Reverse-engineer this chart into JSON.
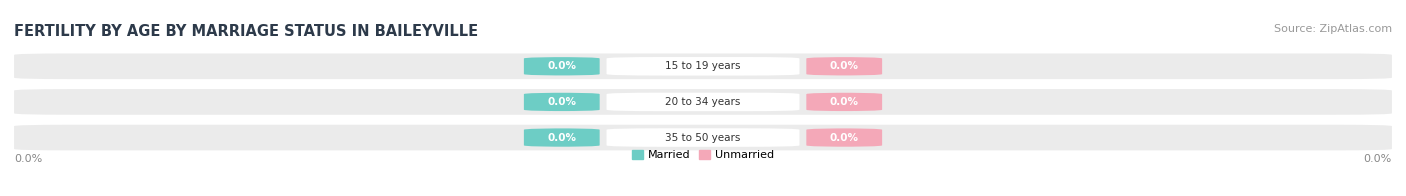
{
  "title": "FERTILITY BY AGE BY MARRIAGE STATUS IN BAILEYVILLE",
  "source": "Source: ZipAtlas.com",
  "age_groups": [
    "15 to 19 years",
    "20 to 34 years",
    "35 to 50 years"
  ],
  "married_values": [
    0.0,
    0.0,
    0.0
  ],
  "unmarried_values": [
    0.0,
    0.0,
    0.0
  ],
  "married_color": "#6DCDC5",
  "unmarried_color": "#F4A8B8",
  "bar_bg_color": "#EBEBEB",
  "bar_bg_color2": "#F5F5F5",
  "title_color": "#2D3A4A",
  "source_color": "#999999",
  "label_color": "#555555",
  "axis_label_color": "#888888",
  "title_fontsize": 10.5,
  "source_fontsize": 8,
  "label_fontsize": 7.5,
  "axis_label_fontsize": 8,
  "left_label": "0.0%",
  "right_label": "0.0%",
  "background_color": "#FFFFFF"
}
